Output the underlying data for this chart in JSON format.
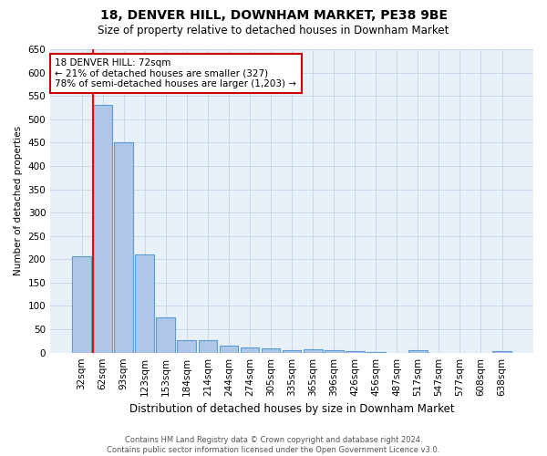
{
  "title1": "18, DENVER HILL, DOWNHAM MARKET, PE38 9BE",
  "title2": "Size of property relative to detached houses in Downham Market",
  "xlabel": "Distribution of detached houses by size in Downham Market",
  "ylabel": "Number of detached properties",
  "categories": [
    "32sqm",
    "62sqm",
    "93sqm",
    "123sqm",
    "153sqm",
    "184sqm",
    "214sqm",
    "244sqm",
    "274sqm",
    "305sqm",
    "335sqm",
    "365sqm",
    "396sqm",
    "426sqm",
    "456sqm",
    "487sqm",
    "517sqm",
    "547sqm",
    "577sqm",
    "608sqm",
    "638sqm"
  ],
  "values": [
    207,
    530,
    450,
    210,
    75,
    27,
    27,
    15,
    12,
    10,
    5,
    8,
    5,
    3,
    1,
    0,
    5,
    0,
    0,
    0,
    3
  ],
  "bar_color": "#aec6e8",
  "bar_edge_color": "#5b9bd5",
  "red_line_bar_index": 1,
  "annotation_text_line1": "18 DENVER HILL: 72sqm",
  "annotation_text_line2": "← 21% of detached houses are smaller (327)",
  "annotation_text_line3": "78% of semi-detached houses are larger (1,203) →",
  "annotation_box_facecolor": "#ffffff",
  "annotation_box_edgecolor": "#cc0000",
  "grid_color": "#c8d8ec",
  "background_color": "#e8f0f8",
  "ylim": [
    0,
    650
  ],
  "yticks": [
    0,
    50,
    100,
    150,
    200,
    250,
    300,
    350,
    400,
    450,
    500,
    550,
    600,
    650
  ],
  "footer1": "Contains HM Land Registry data © Crown copyright and database right 2024.",
  "footer2": "Contains public sector information licensed under the Open Government Licence v3.0."
}
